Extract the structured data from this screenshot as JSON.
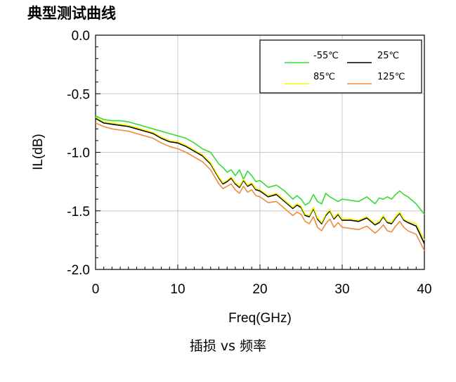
{
  "heading": "典型测试曲线",
  "chart_data": {
    "type": "line",
    "title": "",
    "xlabel": "Freq(GHz)",
    "ylabel": "IL(dB)",
    "caption": "插损 vs 频率",
    "xlim": [
      0,
      40
    ],
    "ylim": [
      -2.0,
      0.0
    ],
    "xticks": [
      "0",
      "10",
      "20",
      "30",
      "40"
    ],
    "yticks": [
      "0.0",
      "-0.5",
      "-1.0",
      "-1.5",
      "-2.0"
    ],
    "grid": true,
    "legend_position": "top-right",
    "x": [
      0,
      1,
      2,
      3,
      4,
      5,
      6,
      7,
      8,
      9,
      10,
      11,
      12,
      13,
      14,
      15,
      15.5,
      16,
      16.5,
      17,
      17.5,
      18,
      18.5,
      19,
      19.5,
      20,
      21,
      22,
      23,
      24,
      24.5,
      25,
      25.5,
      26,
      26.5,
      27,
      27.5,
      28,
      28.5,
      29,
      29.5,
      30,
      31,
      32,
      33,
      34,
      34.5,
      35,
      35.5,
      36,
      36.5,
      37,
      37.5,
      38,
      39,
      40
    ],
    "series": [
      {
        "name": "-55℃",
        "color": "#33dd33",
        "values": [
          -0.69,
          -0.72,
          -0.73,
          -0.73,
          -0.74,
          -0.76,
          -0.78,
          -0.8,
          -0.82,
          -0.84,
          -0.86,
          -0.88,
          -0.92,
          -0.97,
          -1.0,
          -1.1,
          -1.13,
          -1.17,
          -1.15,
          -1.2,
          -1.15,
          -1.23,
          -1.16,
          -1.2,
          -1.25,
          -1.24,
          -1.3,
          -1.28,
          -1.33,
          -1.4,
          -1.37,
          -1.4,
          -1.45,
          -1.43,
          -1.36,
          -1.42,
          -1.44,
          -1.35,
          -1.38,
          -1.4,
          -1.42,
          -1.4,
          -1.41,
          -1.42,
          -1.38,
          -1.44,
          -1.39,
          -1.4,
          -1.38,
          -1.4,
          -1.36,
          -1.33,
          -1.36,
          -1.38,
          -1.44,
          -1.53
        ]
      },
      {
        "name": "25℃",
        "color": "#000000",
        "values": [
          -0.71,
          -0.75,
          -0.76,
          -0.77,
          -0.78,
          -0.8,
          -0.82,
          -0.84,
          -0.88,
          -0.91,
          -0.92,
          -0.95,
          -0.99,
          -1.03,
          -1.1,
          -1.22,
          -1.27,
          -1.25,
          -1.22,
          -1.27,
          -1.3,
          -1.24,
          -1.29,
          -1.27,
          -1.32,
          -1.33,
          -1.38,
          -1.36,
          -1.42,
          -1.48,
          -1.45,
          -1.47,
          -1.54,
          -1.55,
          -1.48,
          -1.57,
          -1.61,
          -1.54,
          -1.5,
          -1.57,
          -1.53,
          -1.58,
          -1.58,
          -1.59,
          -1.56,
          -1.62,
          -1.6,
          -1.55,
          -1.6,
          -1.61,
          -1.56,
          -1.52,
          -1.58,
          -1.6,
          -1.63,
          -1.78
        ]
      },
      {
        "name": "85℃",
        "color": "#f5f500",
        "values": [
          -0.7,
          -0.74,
          -0.75,
          -0.76,
          -0.77,
          -0.79,
          -0.81,
          -0.83,
          -0.87,
          -0.9,
          -0.91,
          -0.94,
          -0.98,
          -1.02,
          -1.09,
          -1.21,
          -1.26,
          -1.24,
          -1.21,
          -1.26,
          -1.29,
          -1.23,
          -1.28,
          -1.26,
          -1.31,
          -1.32,
          -1.37,
          -1.35,
          -1.41,
          -1.47,
          -1.44,
          -1.46,
          -1.53,
          -1.54,
          -1.47,
          -1.56,
          -1.6,
          -1.53,
          -1.49,
          -1.56,
          -1.52,
          -1.57,
          -1.57,
          -1.58,
          -1.55,
          -1.61,
          -1.59,
          -1.54,
          -1.59,
          -1.6,
          -1.55,
          -1.51,
          -1.57,
          -1.59,
          -1.61,
          -1.75
        ]
      },
      {
        "name": "125℃",
        "color": "#f08a3c",
        "values": [
          -0.75,
          -0.78,
          -0.8,
          -0.81,
          -0.82,
          -0.84,
          -0.86,
          -0.88,
          -0.92,
          -0.95,
          -0.97,
          -1.0,
          -1.04,
          -1.08,
          -1.15,
          -1.27,
          -1.31,
          -1.29,
          -1.27,
          -1.32,
          -1.35,
          -1.29,
          -1.34,
          -1.32,
          -1.37,
          -1.38,
          -1.43,
          -1.42,
          -1.48,
          -1.54,
          -1.51,
          -1.53,
          -1.59,
          -1.61,
          -1.55,
          -1.64,
          -1.67,
          -1.61,
          -1.57,
          -1.64,
          -1.6,
          -1.64,
          -1.65,
          -1.66,
          -1.63,
          -1.69,
          -1.66,
          -1.62,
          -1.67,
          -1.68,
          -1.63,
          -1.59,
          -1.64,
          -1.67,
          -1.7,
          -1.84
        ]
      }
    ]
  }
}
